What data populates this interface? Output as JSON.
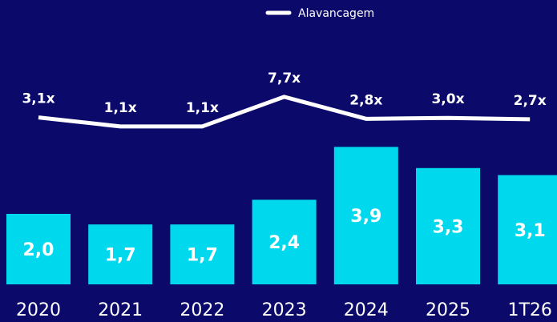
{
  "chart_data": {
    "type": "combo",
    "categories": [
      "2020",
      "2021",
      "2022",
      "2023",
      "2024",
      "2025",
      "1T26"
    ],
    "series": [
      {
        "type": "bar",
        "color": "#00d8ee",
        "values": [
          2.0,
          1.7,
          1.7,
          2.4,
          3.9,
          3.3,
          3.1
        ],
        "value_labels": [
          "2,0",
          "1,7",
          "1,7",
          "2,4",
          "3,9",
          "3,3",
          "3,1"
        ]
      },
      {
        "type": "line",
        "name": "Alavancagem",
        "color": "#ffffff",
        "values": [
          3.1,
          1.1,
          1.1,
          7.7,
          2.8,
          3.0,
          2.7
        ],
        "value_labels": [
          "3,1x",
          "1,1x",
          "1,1x",
          "7,7x",
          "2,8x",
          "3,0x",
          "2,7x"
        ]
      }
    ],
    "legend": "top"
  }
}
